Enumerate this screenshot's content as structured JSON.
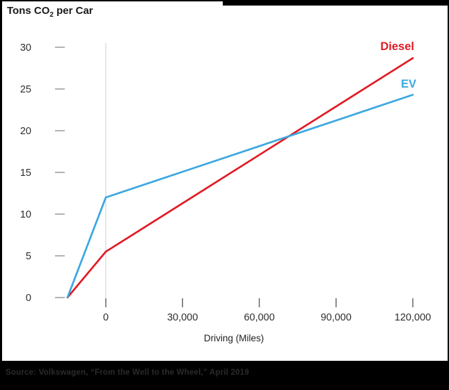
{
  "title": {
    "prefix": "Tons CO",
    "subscript": "2",
    "suffix": " per Car"
  },
  "chart_data": {
    "type": "line",
    "title": "Tons CO2 per Car",
    "xlabel": "Driving (Miles)",
    "ylabel": "Tons CO2 per Car",
    "x_axis": {
      "label": "Driving (Miles)",
      "ticks": [
        {
          "value": 0,
          "label": "0"
        },
        {
          "value": 30000,
          "label": "30,000"
        },
        {
          "value": 60000,
          "label": "60,000"
        },
        {
          "value": 90000,
          "label": "90,000"
        },
        {
          "value": 120000,
          "label": "120,000"
        }
      ],
      "range_miles_drawn": [
        -15000,
        120000
      ],
      "note": "lines start left of the 0-mile gridline representing production-phase emissions at 0 tons"
    },
    "y_axis": {
      "ticks": [
        0,
        5,
        10,
        15,
        20,
        25,
        30
      ],
      "range": [
        0,
        30
      ],
      "grid": false
    },
    "gridline_at_mile": 0,
    "legend_position": "labels-at-line-ends",
    "series": [
      {
        "name": "Diesel",
        "color": "#e01b24",
        "points": [
          {
            "miles": -15000,
            "tons": 0
          },
          {
            "miles": 0,
            "tons": 5.5
          },
          {
            "miles": 120000,
            "tons": 28.7
          }
        ]
      },
      {
        "name": "EV",
        "color": "#3aa7e0",
        "points": [
          {
            "miles": -15000,
            "tons": 0
          },
          {
            "miles": 0,
            "tons": 12
          },
          {
            "miles": 120000,
            "tons": 24.3
          }
        ]
      }
    ],
    "crossover": {
      "miles": 72000,
      "tons": 19.4
    }
  },
  "source": {
    "text": "Source: Volkswagen, “From the Well to the Wheel,” April 2019"
  },
  "colors": {
    "diesel": "#e01b24",
    "ev": "#3aa7e0",
    "gridline": "#d8d8d8",
    "y_tick_dash": "#b3b3b3",
    "x_tick_mark": "#666666",
    "tick_text": "#2e2e2e",
    "frame_border": "#000000"
  }
}
